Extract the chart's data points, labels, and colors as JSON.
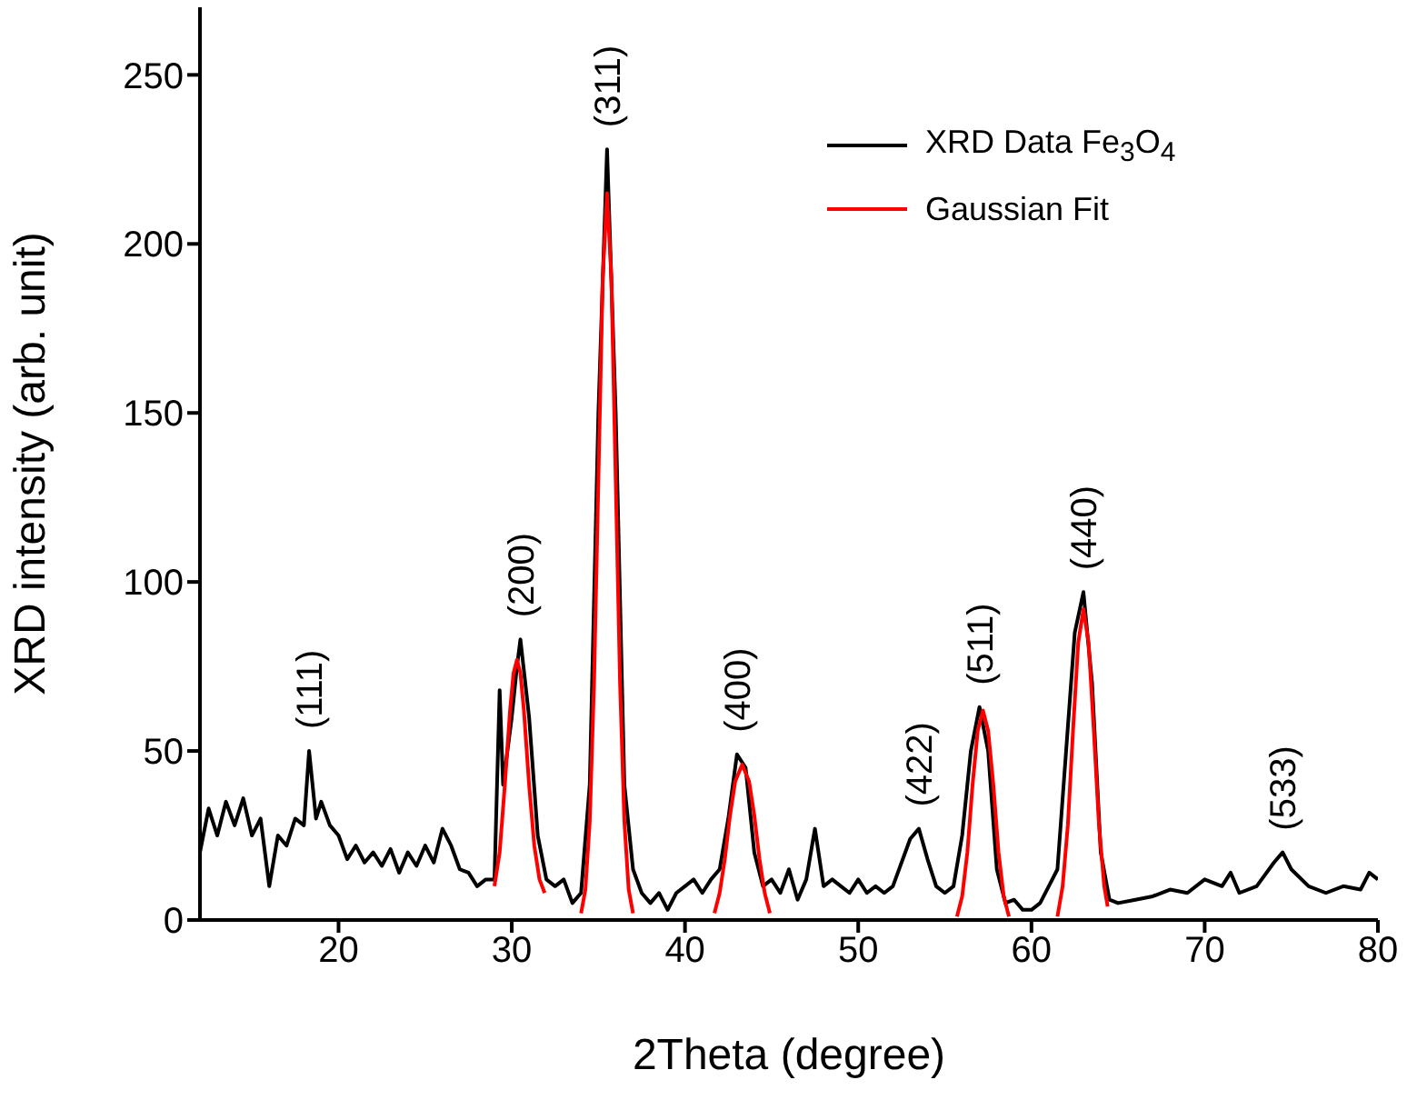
{
  "chart_data": {
    "type": "line",
    "xlabel": "2Theta (degree)",
    "ylabel": "XRD intensity (arb. unit)",
    "xlim": [
      12,
      80
    ],
    "ylim": [
      0,
      270
    ],
    "xticks": [
      20,
      30,
      40,
      50,
      60,
      70,
      80
    ],
    "yticks": [
      0,
      50,
      100,
      150,
      200,
      250
    ],
    "grid": false,
    "legend": "top right",
    "line_style": "solid",
    "marker": "none",
    "series": [
      {
        "name": "XRD Data Fe$_{3}$O$_{4}$",
        "color": "#000000",
        "x": [
          12,
          12.5,
          13,
          13.5,
          14,
          14.5,
          15,
          15.5,
          16,
          16.5,
          17,
          17.5,
          18,
          18.3,
          18.7,
          19,
          19.5,
          20,
          20.5,
          21,
          21.5,
          22,
          22.5,
          23,
          23.5,
          24,
          24.5,
          25,
          25.5,
          26,
          26.5,
          27,
          27.5,
          28,
          28.5,
          29,
          29.3,
          29.5,
          30,
          30.3,
          30.5,
          31,
          31.5,
          32,
          32.5,
          33,
          33.5,
          34,
          34.5,
          35,
          35.5,
          36,
          36.5,
          37,
          37.5,
          38,
          38.5,
          39,
          39.5,
          40,
          40.5,
          41,
          41.5,
          42,
          42.5,
          43,
          43.5,
          44,
          44.5,
          45,
          45.5,
          46,
          46.5,
          47,
          47.5,
          48,
          48.5,
          49,
          49.5,
          50,
          50.5,
          51,
          51.5,
          52,
          53,
          53.5,
          54,
          54.5,
          55,
          55.5,
          56,
          56.5,
          57,
          57.5,
          58,
          58.5,
          59,
          59.5,
          60,
          60.5,
          61,
          61.5,
          62,
          62.5,
          63,
          63.5,
          64,
          64.5,
          65,
          66,
          67,
          68,
          69,
          70,
          71,
          71.5,
          72,
          73,
          74,
          74.5,
          75,
          76,
          77,
          78,
          79,
          79.5,
          80
        ],
        "values": [
          20,
          33,
          25,
          35,
          28,
          36,
          25,
          30,
          10,
          25,
          22,
          30,
          28,
          50,
          30,
          35,
          28,
          25,
          18,
          22,
          17,
          20,
          16,
          21,
          14,
          20,
          16,
          22,
          17,
          27,
          22,
          15,
          14,
          10,
          12,
          12,
          68,
          40,
          60,
          75,
          83,
          60,
          25,
          12,
          10,
          12,
          5,
          8,
          40,
          150,
          228,
          150,
          40,
          15,
          8,
          5,
          8,
          3,
          8,
          10,
          12,
          8,
          12,
          15,
          30,
          49,
          45,
          20,
          10,
          12,
          8,
          15,
          6,
          12,
          27,
          10,
          12,
          10,
          8,
          12,
          8,
          10,
          8,
          10,
          24,
          27,
          18,
          10,
          8,
          10,
          25,
          50,
          63,
          50,
          15,
          5,
          6,
          3,
          3,
          5,
          10,
          15,
          50,
          85,
          97,
          70,
          20,
          6,
          5,
          6,
          7,
          9,
          8,
          12,
          10,
          14,
          8,
          10,
          17,
          20,
          15,
          10,
          8,
          10,
          9,
          14,
          12
        ]
      },
      {
        "name": "Gaussian Fit",
        "color": "#ff0000",
        "x": [
          29,
          29.3,
          29.6,
          29.9,
          30.1,
          30.3,
          30.5,
          30.7,
          31,
          31.3,
          31.6,
          31.9,
          32.5,
          34,
          34.25,
          34.5,
          34.75,
          35,
          35.25,
          35.5,
          35.75,
          36,
          36.25,
          36.5,
          36.75,
          37,
          39,
          41.7,
          42,
          42.3,
          42.6,
          42.9,
          43.3,
          43.7,
          44,
          44.3,
          44.6,
          44.9,
          50,
          55.7,
          56,
          56.3,
          56.6,
          56.9,
          57.2,
          57.5,
          57.8,
          58.1,
          58.4,
          58.7,
          60,
          61.5,
          61.8,
          62.1,
          62.4,
          62.7,
          63,
          63.3,
          63.6,
          63.9,
          64.2,
          64.4
        ],
        "values": [
          10,
          20,
          40,
          62,
          73,
          77,
          73,
          62,
          40,
          22,
          12,
          8,
          null,
          2,
          9,
          29,
          70,
          130,
          190,
          215,
          190,
          130,
          70,
          29,
          9,
          2,
          null,
          2,
          8,
          18,
          31,
          41,
          46,
          41,
          31,
          18,
          8,
          2,
          null,
          1,
          7,
          20,
          40,
          56,
          62,
          56,
          40,
          20,
          7,
          1,
          null,
          1,
          10,
          28,
          56,
          82,
          92,
          82,
          56,
          28,
          10,
          4
        ]
      }
    ],
    "annotations": [
      {
        "text": "(111)",
        "x": 18.3,
        "y": 50
      },
      {
        "text": "(200)",
        "x": 30.5,
        "y": 83
      },
      {
        "text": "(311)",
        "x": 35.5,
        "y": 228
      },
      {
        "text": "(400)",
        "x": 43,
        "y": 49
      },
      {
        "text": "(422)",
        "x": 53.5,
        "y": 27
      },
      {
        "text": "(511)",
        "x": 57,
        "y": 63
      },
      {
        "text": "(440)",
        "x": 63,
        "y": 97
      },
      {
        "text": "(533)",
        "x": 74.5,
        "y": 20
      }
    ]
  }
}
